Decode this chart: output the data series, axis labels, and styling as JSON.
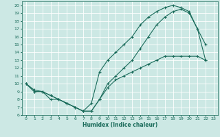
{
  "xlabel": "Humidex (Indice chaleur)",
  "bg_color": "#cce8e4",
  "grid_color": "#ffffff",
  "line_color": "#1a6b5a",
  "xlim": [
    -0.5,
    23.5
  ],
  "ylim": [
    6,
    20.5
  ],
  "xticks": [
    0,
    1,
    2,
    3,
    4,
    5,
    6,
    7,
    8,
    9,
    10,
    11,
    12,
    13,
    14,
    15,
    16,
    17,
    18,
    19,
    20,
    21,
    22,
    23
  ],
  "yticks": [
    6,
    7,
    8,
    9,
    10,
    11,
    12,
    13,
    14,
    15,
    16,
    17,
    18,
    19,
    20
  ],
  "line1_x": [
    0,
    1,
    2,
    3,
    4,
    5,
    6,
    7,
    8,
    9,
    10,
    11,
    12,
    13,
    14,
    15,
    16,
    17,
    18,
    19,
    20,
    21,
    22
  ],
  "line1_y": [
    10,
    9,
    9,
    8,
    8,
    7.5,
    7,
    6.5,
    7.5,
    11.5,
    13,
    14,
    15,
    16,
    17.5,
    18.5,
    19.2,
    19.7,
    20,
    19.7,
    19.2,
    17,
    13
  ],
  "line2_x": [
    0,
    1,
    2,
    3,
    4,
    5,
    6,
    7,
    8,
    9,
    10,
    11,
    12,
    13,
    14,
    15,
    16,
    17,
    18,
    19,
    20,
    21,
    22
  ],
  "line2_y": [
    10,
    9,
    9,
    8.5,
    8,
    7.5,
    7,
    6.5,
    6.5,
    8,
    10,
    11,
    12,
    13,
    14.5,
    16,
    17.5,
    18.5,
    19.2,
    19.5,
    19,
    17,
    15
  ],
  "line3_x": [
    0,
    1,
    2,
    3,
    4,
    5,
    6,
    7,
    8,
    9,
    10,
    11,
    12,
    13,
    14,
    15,
    16,
    17,
    18,
    19,
    20,
    21,
    22
  ],
  "line3_y": [
    10,
    9.2,
    9,
    8.5,
    8,
    7.5,
    7,
    6.5,
    6.5,
    8,
    9.5,
    10.5,
    11,
    11.5,
    12,
    12.5,
    13,
    13.5,
    13.5,
    13.5,
    13.5,
    13.5,
    13
  ]
}
